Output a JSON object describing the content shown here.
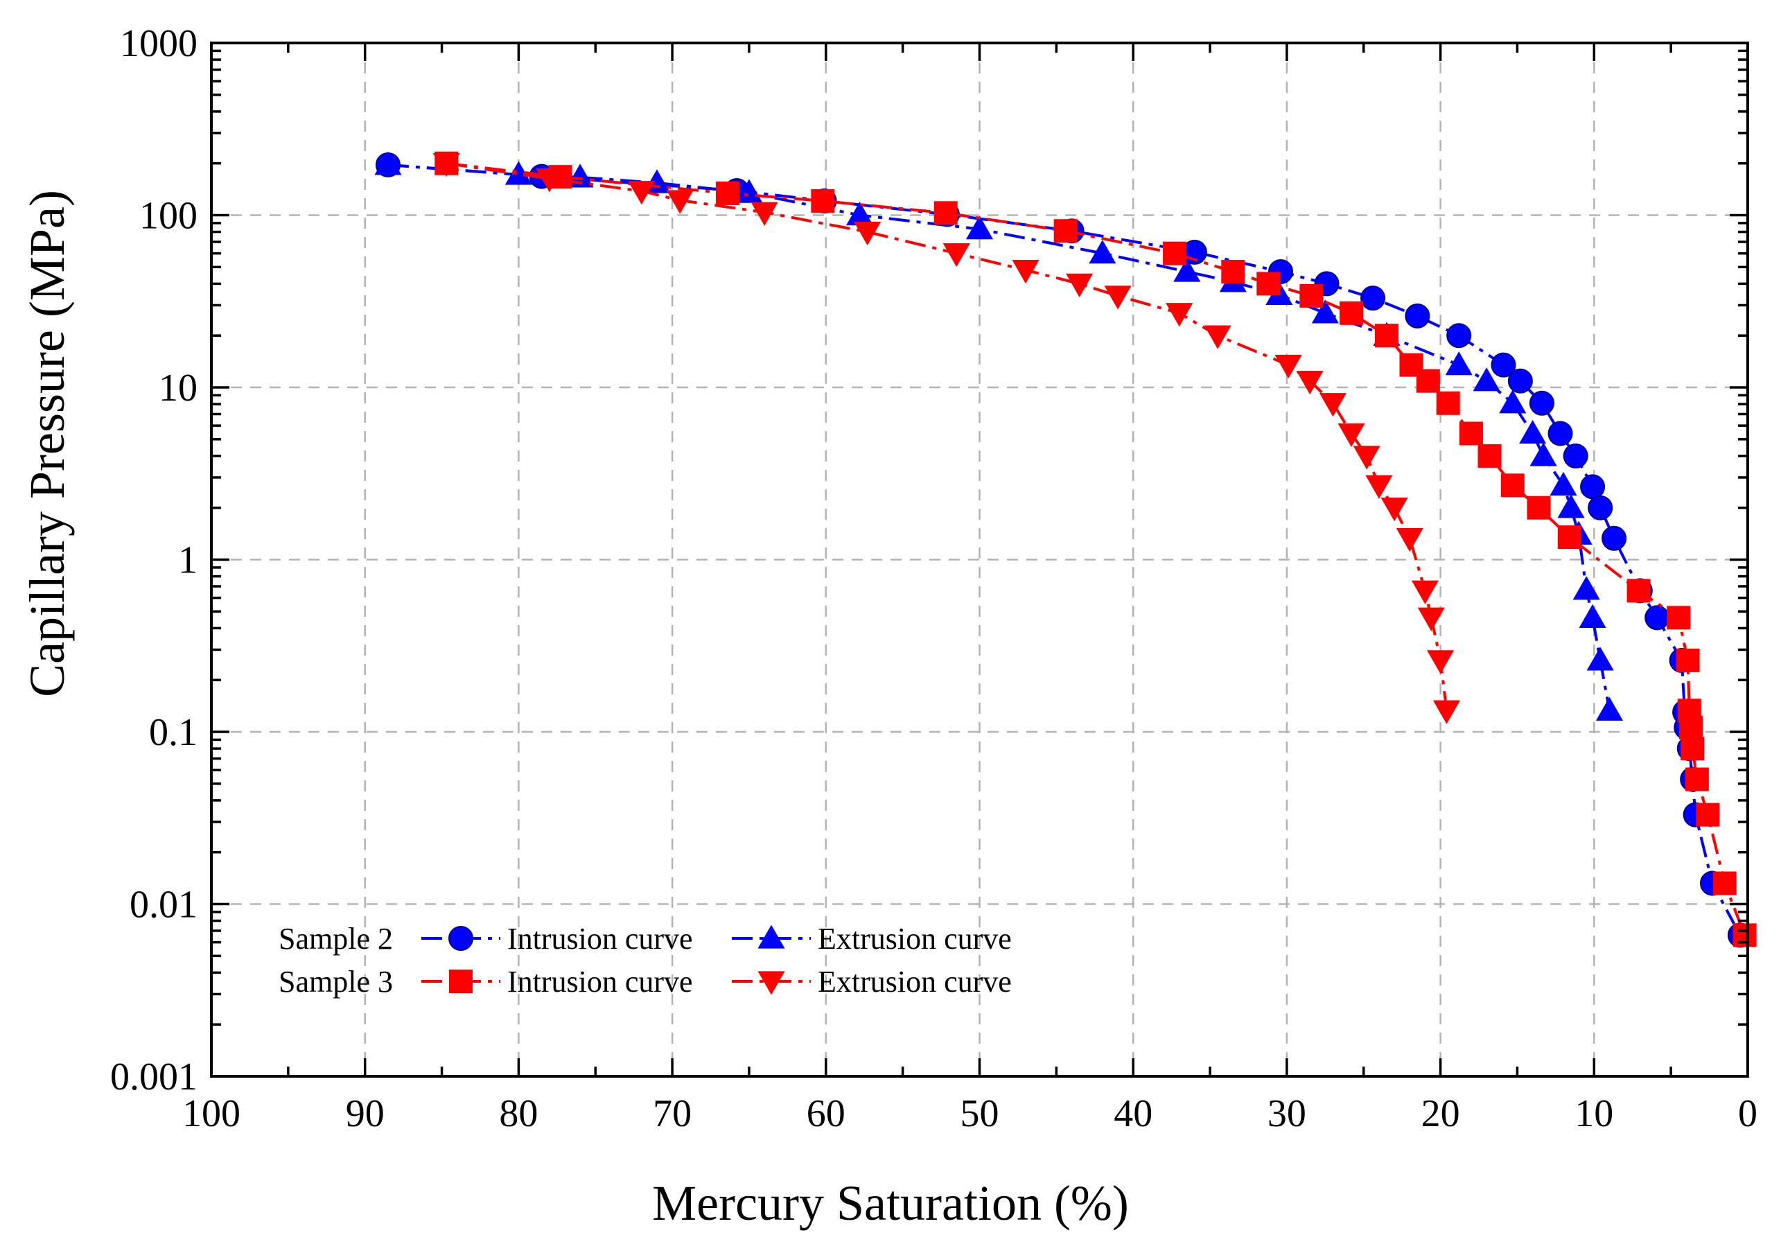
{
  "chart_data": {
    "type": "scatter",
    "xlabel": "Mercury Saturation (%)",
    "ylabel": "Capillary Pressure (MPa)",
    "xlim": [
      100,
      0
    ],
    "x_reversed": true,
    "ylim": [
      0.001,
      1000
    ],
    "y_scale": "log",
    "grid": true,
    "legend_position": "bottom-left",
    "x_ticks": [
      "100",
      "90",
      "80",
      "70",
      "60",
      "50",
      "40",
      "30",
      "20",
      "10",
      "0"
    ],
    "y_ticks": [
      "0.001",
      "0.01",
      "0.1",
      "1",
      "10",
      "100",
      "1000"
    ],
    "legend": {
      "groups": [
        "Sample 2",
        "Sample 3"
      ],
      "intrusion_label": "Intrusion curve",
      "extrusion_label": "Extrusion curve"
    },
    "series": [
      {
        "name": "Intrusion curve",
        "group": "Sample 2",
        "color": "#0000ff",
        "marker": "circle",
        "dash": "dash-dot",
        "points": [
          [
            88.5,
            196
          ],
          [
            78.5,
            168
          ],
          [
            65.8,
            139
          ],
          [
            60.1,
            121
          ],
          [
            52.1,
            101
          ],
          [
            44,
            81
          ],
          [
            36,
            61
          ],
          [
            30.4,
            47
          ],
          [
            27.4,
            40
          ],
          [
            24.4,
            33
          ],
          [
            21.5,
            26
          ],
          [
            18.8,
            20
          ],
          [
            15.9,
            13.5
          ],
          [
            14.8,
            10.9
          ],
          [
            13.4,
            8.1
          ],
          [
            12.2,
            5.4
          ],
          [
            11.2,
            4
          ],
          [
            10.1,
            2.65
          ],
          [
            9.6,
            2
          ],
          [
            8.7,
            1.33
          ],
          [
            7,
            0.66
          ],
          [
            5.9,
            0.46
          ],
          [
            4.3,
            0.26
          ],
          [
            4.1,
            0.13
          ],
          [
            4,
            0.106
          ],
          [
            3.8,
            0.08
          ],
          [
            3.6,
            0.053
          ],
          [
            3.4,
            0.033
          ],
          [
            2.3,
            0.0132
          ],
          [
            0.5,
            0.0066
          ]
        ]
      },
      {
        "name": "Extrusion curve",
        "group": "Sample 2",
        "color": "#0000ff",
        "marker": "triangle-up",
        "dash": "dash-dot",
        "points": [
          [
            88.5,
            196
          ],
          [
            80,
            172
          ],
          [
            76,
            166
          ],
          [
            71,
            154
          ],
          [
            65,
            135
          ],
          [
            57.8,
            100
          ],
          [
            50,
            83
          ],
          [
            42,
            60
          ],
          [
            36.5,
            47
          ],
          [
            33.5,
            41
          ],
          [
            30.5,
            34.5
          ],
          [
            27.5,
            27
          ],
          [
            23.5,
            20
          ],
          [
            18.8,
            13.5
          ],
          [
            17,
            10.9
          ],
          [
            15.3,
            8.1
          ],
          [
            14,
            5.4
          ],
          [
            13.3,
            4
          ],
          [
            12,
            2.7
          ],
          [
            11.5,
            2
          ],
          [
            11,
            1.4
          ],
          [
            10.5,
            0.67
          ],
          [
            10.1,
            0.46
          ],
          [
            9.6,
            0.26
          ],
          [
            9,
            0.133
          ]
        ]
      },
      {
        "name": "Intrusion curve",
        "group": "Sample 3",
        "color": "#ff0000",
        "marker": "square",
        "dash": "dash-dot",
        "points": [
          [
            84.7,
            200
          ],
          [
            77.3,
            167
          ],
          [
            66.4,
            134
          ],
          [
            60.2,
            121
          ],
          [
            52.2,
            103
          ],
          [
            44.4,
            81
          ],
          [
            37.3,
            60
          ],
          [
            33.5,
            47
          ],
          [
            31.2,
            40
          ],
          [
            28.4,
            34
          ],
          [
            25.8,
            27
          ],
          [
            23.5,
            20
          ],
          [
            21.9,
            13.5
          ],
          [
            20.8,
            10.9
          ],
          [
            19.5,
            8.1
          ],
          [
            18,
            5.4
          ],
          [
            16.8,
            4
          ],
          [
            15.3,
            2.7
          ],
          [
            13.6,
            2
          ],
          [
            11.6,
            1.35
          ],
          [
            7.1,
            0.66
          ],
          [
            4.5,
            0.46
          ],
          [
            3.9,
            0.26
          ],
          [
            3.8,
            0.133
          ],
          [
            3.7,
            0.106
          ],
          [
            3.6,
            0.08
          ],
          [
            3.3,
            0.053
          ],
          [
            2.6,
            0.033
          ],
          [
            1.5,
            0.0132
          ],
          [
            0.2,
            0.0066
          ]
        ]
      },
      {
        "name": "Extrusion curve",
        "group": "Sample 3",
        "color": "#ff0000",
        "marker": "triangle-down",
        "dash": "dash-dot",
        "points": [
          [
            84.7,
            200
          ],
          [
            78,
            163
          ],
          [
            72,
            138
          ],
          [
            69.5,
            122
          ],
          [
            64,
            104
          ],
          [
            57.3,
            80
          ],
          [
            51.5,
            60
          ],
          [
            47,
            48
          ],
          [
            43.5,
            40
          ],
          [
            41,
            34
          ],
          [
            37,
            27
          ],
          [
            34.5,
            20
          ],
          [
            29.9,
            13.5
          ],
          [
            28.5,
            10.9
          ],
          [
            27,
            8.1
          ],
          [
            25.8,
            5.4
          ],
          [
            24.8,
            4
          ],
          [
            24,
            2.7
          ],
          [
            23,
            2
          ],
          [
            22,
            1.33
          ],
          [
            21,
            0.66
          ],
          [
            20.6,
            0.46
          ],
          [
            20,
            0.26
          ],
          [
            19.6,
            0.133
          ]
        ]
      }
    ]
  }
}
